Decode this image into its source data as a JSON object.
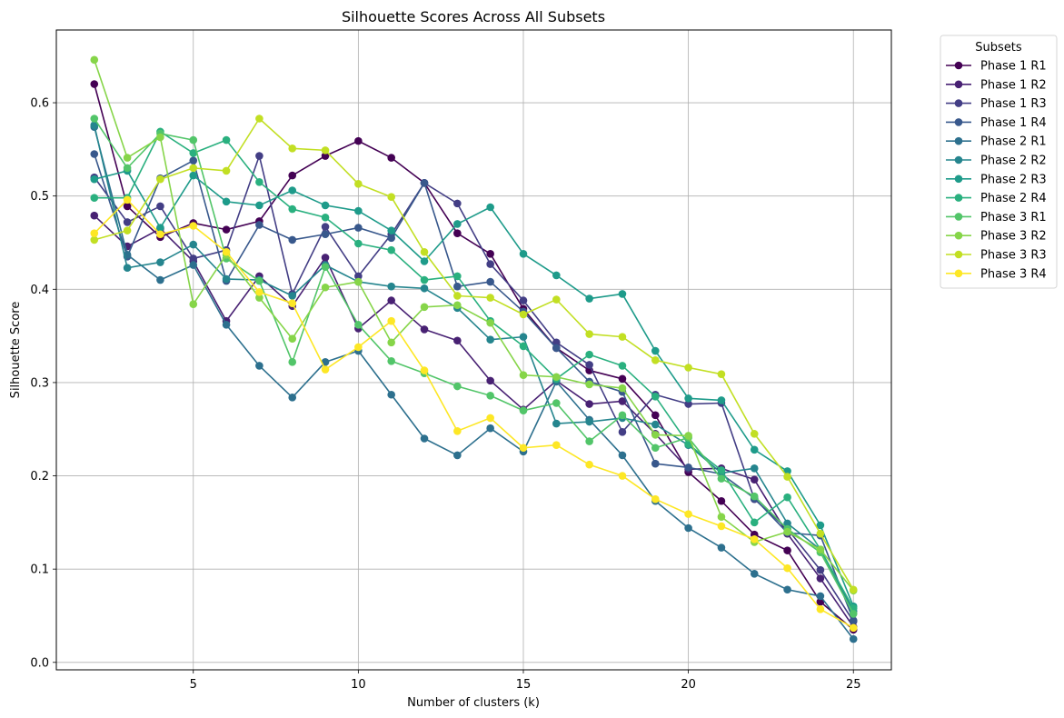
{
  "chart_data": {
    "type": "line",
    "title": "Silhouette Scores Across All Subsets",
    "xlabel": "Number of clusters (k)",
    "ylabel": "Silhouette Score",
    "xlim": [
      0.85,
      26.15
    ],
    "ylim": [
      -0.008,
      0.678
    ],
    "xticks": [
      5,
      10,
      15,
      20,
      25
    ],
    "yticks": [
      0.0,
      0.1,
      0.2,
      0.3,
      0.4,
      0.5,
      0.6
    ],
    "grid": true,
    "legend": {
      "title": "Subsets",
      "placement": "outside-top-right"
    },
    "x": [
      2,
      3,
      4,
      5,
      6,
      7,
      8,
      9,
      10,
      11,
      12,
      13,
      14,
      15,
      16,
      17,
      18,
      19,
      20,
      21,
      22,
      23,
      24,
      25
    ],
    "series": [
      {
        "name": "Phase 1 R1",
        "color": "#440154",
        "values": [
          0.62,
          0.489,
          0.456,
          0.471,
          0.464,
          0.473,
          0.522,
          0.543,
          0.559,
          0.541,
          0.514,
          0.46,
          0.438,
          0.379,
          0.337,
          0.313,
          0.304,
          0.265,
          0.204,
          0.173,
          0.137,
          0.12,
          0.065,
          0.035
        ]
      },
      {
        "name": "Phase 1 R2",
        "color": "#482173",
        "values": [
          0.479,
          0.446,
          0.465,
          0.43,
          0.366,
          0.414,
          0.382,
          0.434,
          0.358,
          0.388,
          0.357,
          0.345,
          0.302,
          0.271,
          0.302,
          0.277,
          0.28,
          0.245,
          0.207,
          0.208,
          0.196,
          0.138,
          0.09,
          0.038
        ]
      },
      {
        "name": "Phase 1 R3",
        "color": "#433e85",
        "values": [
          0.52,
          0.472,
          0.489,
          0.433,
          0.442,
          0.543,
          0.395,
          0.467,
          0.414,
          0.459,
          0.514,
          0.492,
          0.427,
          0.388,
          0.343,
          0.319,
          0.247,
          0.287,
          0.277,
          0.278,
          0.175,
          0.143,
          0.099,
          0.044
        ]
      },
      {
        "name": "Phase 1 R4",
        "color": "#38588c",
        "values": [
          0.545,
          0.435,
          0.519,
          0.538,
          0.409,
          0.469,
          0.453,
          0.459,
          0.466,
          0.455,
          0.514,
          0.403,
          0.408,
          0.376,
          0.337,
          0.301,
          0.29,
          0.213,
          0.209,
          0.202,
          0.176,
          0.139,
          0.136,
          0.045
        ]
      },
      {
        "name": "Phase 2 R1",
        "color": "#2d708e",
        "values": [
          0.574,
          0.437,
          0.41,
          0.426,
          0.362,
          0.318,
          0.284,
          0.322,
          0.334,
          0.287,
          0.24,
          0.222,
          0.251,
          0.226,
          0.301,
          0.26,
          0.222,
          0.173,
          0.144,
          0.123,
          0.095,
          0.078,
          0.071,
          0.025
        ]
      },
      {
        "name": "Phase 2 R2",
        "color": "#25858e",
        "values": [
          0.576,
          0.423,
          0.429,
          0.448,
          0.411,
          0.41,
          0.393,
          0.426,
          0.408,
          0.403,
          0.401,
          0.38,
          0.346,
          0.349,
          0.256,
          0.258,
          0.262,
          0.255,
          0.233,
          0.203,
          0.208,
          0.149,
          0.121,
          0.055
        ]
      },
      {
        "name": "Phase 2 R3",
        "color": "#1e9b8a",
        "values": [
          0.518,
          0.527,
          0.466,
          0.522,
          0.494,
          0.49,
          0.506,
          0.49,
          0.484,
          0.463,
          0.43,
          0.47,
          0.488,
          0.438,
          0.415,
          0.39,
          0.395,
          0.334,
          0.283,
          0.281,
          0.228,
          0.205,
          0.147,
          0.06
        ]
      },
      {
        "name": "Phase 2 R4",
        "color": "#2ab07f",
        "values": [
          0.498,
          0.498,
          0.569,
          0.546,
          0.56,
          0.515,
          0.486,
          0.477,
          0.449,
          0.442,
          0.41,
          0.414,
          0.366,
          0.339,
          0.304,
          0.33,
          0.318,
          0.285,
          0.234,
          0.206,
          0.15,
          0.177,
          0.121,
          0.058
        ]
      },
      {
        "name": "Phase 3 R1",
        "color": "#52c569",
        "values": [
          0.583,
          0.53,
          0.567,
          0.56,
          0.433,
          0.409,
          0.322,
          0.424,
          0.362,
          0.323,
          0.31,
          0.296,
          0.286,
          0.27,
          0.278,
          0.237,
          0.265,
          0.23,
          0.241,
          0.197,
          0.178,
          0.143,
          0.118,
          0.052
        ]
      },
      {
        "name": "Phase 3 R2",
        "color": "#86d549",
        "values": [
          0.646,
          0.541,
          0.563,
          0.384,
          0.437,
          0.391,
          0.347,
          0.402,
          0.408,
          0.343,
          0.381,
          0.383,
          0.364,
          0.308,
          0.306,
          0.298,
          0.294,
          0.244,
          0.243,
          0.156,
          0.129,
          0.14,
          0.121,
          0.077
        ]
      },
      {
        "name": "Phase 3 R3",
        "color": "#c2df23",
        "values": [
          0.453,
          0.463,
          0.518,
          0.53,
          0.527,
          0.583,
          0.551,
          0.549,
          0.513,
          0.499,
          0.44,
          0.393,
          0.391,
          0.373,
          0.389,
          0.352,
          0.349,
          0.324,
          0.316,
          0.309,
          0.245,
          0.199,
          0.138,
          0.078
        ]
      },
      {
        "name": "Phase 3 R4",
        "color": "#fde725",
        "values": [
          0.46,
          0.496,
          0.459,
          0.468,
          0.44,
          0.397,
          0.385,
          0.314,
          0.338,
          0.366,
          0.313,
          0.248,
          0.262,
          0.23,
          0.233,
          0.212,
          0.2,
          0.175,
          0.159,
          0.146,
          0.132,
          0.101,
          0.057,
          0.037
        ]
      }
    ]
  }
}
